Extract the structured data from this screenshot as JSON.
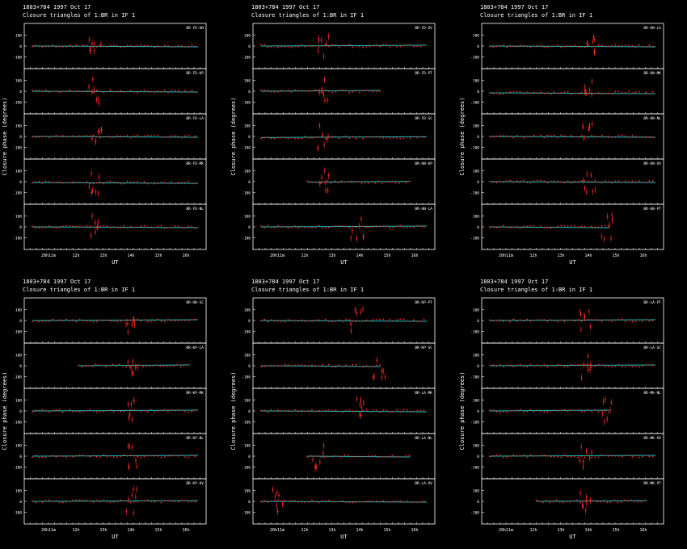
{
  "figure": {
    "source": "1803+784",
    "date": "1997 Oct 17",
    "subtitle": "Closure triangles of 1:BR in IF 1",
    "xlabel": "UT",
    "ylabel": "Closure phase  (degrees)"
  },
  "colors": {
    "background": "#000000",
    "data": "#ff2a2a",
    "model": "#00c8c8",
    "axes": "#ffffff"
  },
  "chart_data": [
    {
      "type": "scatter",
      "panel": "top-left",
      "xticks": [
        "20h11m",
        "12h",
        "13h",
        "14h",
        "15h",
        "16h"
      ],
      "ylim": [
        -180,
        180
      ],
      "yticks": [
        "100",
        "0",
        "-100"
      ],
      "triangles": [
        {
          "label": "BR-FD-HN",
          "start": 0.0,
          "end": 1.0,
          "spike": 0.38,
          "offset": 0
        },
        {
          "label": "BR-FD-KP",
          "start": 0.0,
          "end": 1.0,
          "spike": 0.38,
          "offset": 0
        },
        {
          "label": "BR-FD-LA",
          "start": 0.0,
          "end": 1.0,
          "spike": 0.38,
          "offset": 0
        },
        {
          "label": "BR-FD-MK",
          "start": 0.0,
          "end": 1.0,
          "spike": 0.38,
          "offset": -8
        },
        {
          "label": "BR-FD-NL",
          "start": 0.0,
          "end": 1.0,
          "spike": 0.38,
          "offset": 0
        }
      ]
    },
    {
      "type": "scatter",
      "panel": "top-middle",
      "xticks": [
        "20h11m",
        "12h",
        "13h",
        "14h",
        "15h",
        "16h"
      ],
      "ylim": [
        -180,
        180
      ],
      "yticks": [
        "100",
        "0",
        "-100"
      ],
      "triangles": [
        {
          "label": "BR-FD-OV",
          "start": 0.0,
          "end": 1.0,
          "spike": 0.38,
          "offset": 0
        },
        {
          "label": "BR-FD-PT",
          "start": 0.0,
          "end": 0.72,
          "spike": 0.38,
          "offset": 0
        },
        {
          "label": "BR-FD-SC",
          "start": 0.0,
          "end": 1.0,
          "spike": 0.38,
          "offset": -10
        },
        {
          "label": "BR-HN-KP",
          "start": 0.28,
          "end": 0.9,
          "spike": 0.38,
          "offset": -5
        },
        {
          "label": "BR-HN-LA",
          "start": 0.0,
          "end": 1.0,
          "spike": 0.58,
          "offset": 0
        }
      ]
    },
    {
      "type": "scatter",
      "panel": "top-right",
      "xticks": [
        "20h11m",
        "12h",
        "13h",
        "14h",
        "15h",
        "16h"
      ],
      "ylim": [
        -180,
        180
      ],
      "yticks": [
        "100",
        "0",
        "-100"
      ],
      "triangles": [
        {
          "label": "BR-HN-LA",
          "start": 0.0,
          "end": 1.0,
          "spike": 0.6,
          "offset": 0
        },
        {
          "label": "BR-HN-MK",
          "start": 0.0,
          "end": 1.0,
          "spike": 0.6,
          "offset": -15
        },
        {
          "label": "BR-HN-NL",
          "start": 0.0,
          "end": 1.0,
          "spike": 0.6,
          "offset": 0
        },
        {
          "label": "BR-HN-OV",
          "start": 0.0,
          "end": 1.0,
          "spike": 0.6,
          "offset": 0
        },
        {
          "label": "BR-HN-PT",
          "start": 0.0,
          "end": 0.72,
          "spike": 0.71,
          "offset": 0
        }
      ]
    },
    {
      "type": "scatter",
      "panel": "bottom-left",
      "xticks": [
        "20h11m",
        "12h",
        "13h",
        "14h",
        "15h",
        "16h"
      ],
      "ylim": [
        -180,
        180
      ],
      "yticks": [
        "100",
        "0",
        "-100"
      ],
      "triangles": [
        {
          "label": "BR-HN-SC",
          "start": 0.0,
          "end": 1.0,
          "spike": 0.6,
          "offset": 0
        },
        {
          "label": "BR-KP-LA",
          "start": 0.28,
          "end": 0.95,
          "spike": 0.6,
          "offset": 0
        },
        {
          "label": "BR-KP-MK",
          "start": 0.0,
          "end": 1.0,
          "spike": 0.6,
          "offset": 0
        },
        {
          "label": "BR-KP-NL",
          "start": 0.0,
          "end": 1.0,
          "spike": 0.6,
          "offset": 0
        },
        {
          "label": "BR-KP-OV",
          "start": 0.0,
          "end": 1.0,
          "spike": 0.6,
          "offset": 0
        }
      ]
    },
    {
      "type": "scatter",
      "panel": "bottom-middle",
      "xticks": [
        "20h11m",
        "12h",
        "13h",
        "14h",
        "15h",
        "16h"
      ],
      "ylim": [
        -180,
        180
      ],
      "yticks": [
        "100",
        "0",
        "-100"
      ],
      "triangles": [
        {
          "label": "BR-KP-PT",
          "start": 0.0,
          "end": 1.0,
          "spike": 0.58,
          "offset": 0
        },
        {
          "label": "BR-KP-SC",
          "start": 0.0,
          "end": 0.72,
          "spike": 0.71,
          "offset": 0
        },
        {
          "label": "BR-LA-MK",
          "start": 0.0,
          "end": 1.0,
          "spike": 0.58,
          "offset": 0
        },
        {
          "label": "BR-LA-NL",
          "start": 0.28,
          "end": 0.9,
          "spike": 0.35,
          "offset": 0
        },
        {
          "label": "BR-LA-OV",
          "start": 0.0,
          "end": 1.0,
          "spike": 0.11,
          "offset": 0
        }
      ]
    },
    {
      "type": "scatter",
      "panel": "bottom-right",
      "xticks": [
        "20h11m",
        "12h",
        "13h",
        "14h",
        "15h",
        "16h"
      ],
      "ylim": [
        -180,
        180
      ],
      "yticks": [
        "100",
        "0",
        "-100"
      ],
      "triangles": [
        {
          "label": "BR-LA-PT",
          "start": 0.0,
          "end": 1.0,
          "spike": 0.58,
          "offset": 0
        },
        {
          "label": "BR-LA-SC",
          "start": 0.0,
          "end": 1.0,
          "spike": 0.58,
          "offset": 0
        },
        {
          "label": "BR-MK-NL",
          "start": 0.0,
          "end": 0.72,
          "spike": 0.71,
          "offset": 0
        },
        {
          "label": "BR-MK-OV",
          "start": 0.0,
          "end": 1.0,
          "spike": 0.58,
          "offset": 0
        },
        {
          "label": "BR-MK-PT",
          "start": 0.28,
          "end": 0.95,
          "spike": 0.58,
          "offset": 0
        }
      ]
    }
  ]
}
